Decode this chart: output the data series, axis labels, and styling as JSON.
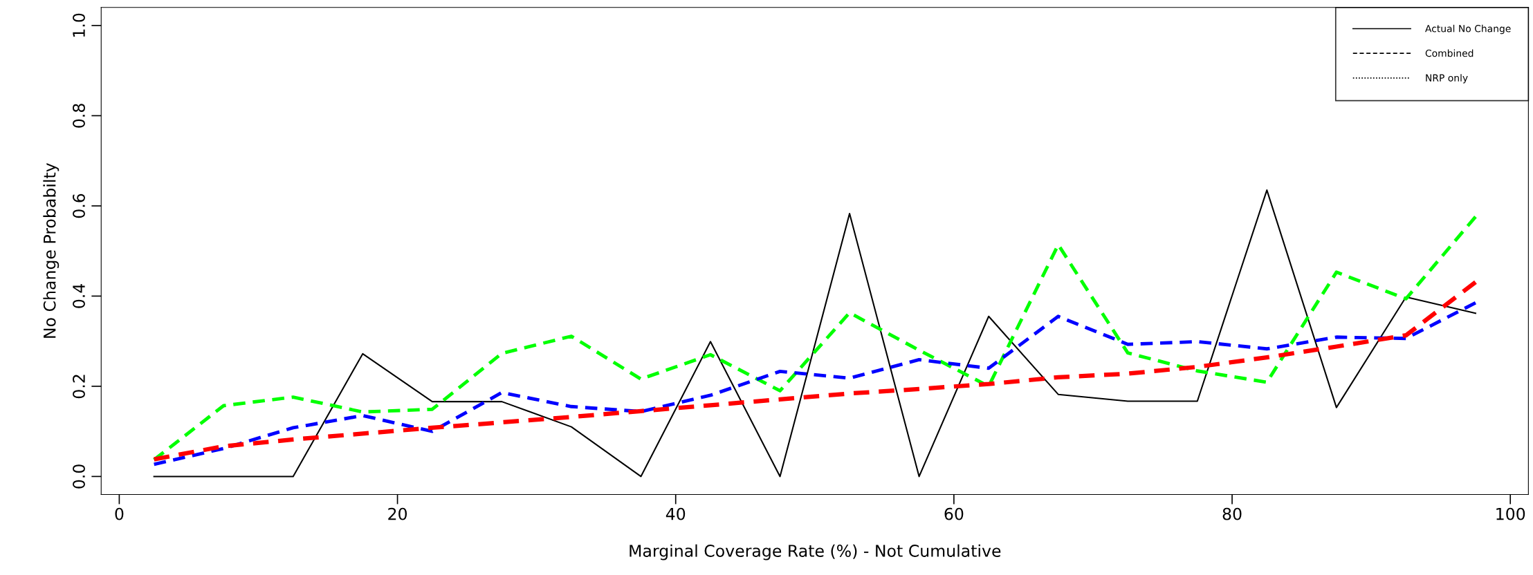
{
  "chart_data": {
    "type": "line",
    "xlabel": "Marginal Coverage Rate (%) - Not Cumulative",
    "ylabel": "No Change Probabilty",
    "x": [
      2.5,
      7.5,
      12.5,
      17.5,
      22.5,
      27.5,
      32.5,
      37.5,
      42.5,
      47.5,
      52.5,
      57.5,
      62.5,
      67.5,
      72.5,
      77.5,
      82.5,
      87.5,
      92.5,
      97.5
    ],
    "xlim": [
      -1.3,
      101.3
    ],
    "xticks": [
      0,
      20,
      40,
      60,
      80,
      100
    ],
    "ylim": [
      -0.04,
      1.04
    ],
    "yticks": [
      {
        "value": 0,
        "label": "0.0"
      },
      0.2,
      0.4,
      0.6,
      0.8,
      {
        "value": 1,
        "label": "1.0"
      }
    ],
    "grid": false,
    "legend": "top right",
    "marker": "none",
    "series": [
      {
        "name": "Actual No Change",
        "color": "#000000",
        "line_style": "solid",
        "values": [
          0,
          0,
          0,
          0.272,
          0.166,
          0.166,
          0.11,
          0,
          0.299,
          0,
          0.583,
          0,
          0.355,
          0.182,
          0.167,
          0.167,
          0.635,
          0.153,
          0.398,
          0.362
        ]
      },
      {
        "name": "Combined",
        "color": "#000000",
        "line_style": "dashed",
        "values": [
          null,
          null,
          null,
          null,
          null,
          null,
          null,
          null,
          null,
          null,
          null,
          null,
          null,
          null,
          null,
          null,
          null,
          null,
          null,
          null
        ]
      },
      {
        "name": "NRP only",
        "color": "#000000",
        "line_style": "dotted",
        "values": [
          null,
          null,
          null,
          null,
          null,
          null,
          null,
          null,
          null,
          null,
          null,
          null,
          null,
          null,
          null,
          null,
          null,
          null,
          null,
          null
        ]
      },
      {
        "color": "#00ff00",
        "line_style": "dashed",
        "values": [
          0.037,
          0.157,
          0.176,
          0.143,
          0.149,
          0.273,
          0.311,
          0.216,
          0.27,
          0.19,
          0.363,
          0.28,
          0.2,
          0.514,
          0.274,
          0.234,
          0.209,
          0.453,
          0.394,
          0.576
        ]
      },
      {
        "color": "#0000ff",
        "line_style": "dashed",
        "values": [
          0.027,
          0.062,
          0.108,
          0.135,
          0.1,
          0.186,
          0.155,
          0.144,
          0.18,
          0.233,
          0.218,
          0.259,
          0.24,
          0.355,
          0.293,
          0.299,
          0.283,
          0.309,
          0.306,
          0.385
        ]
      },
      {
        "color": "#ff0000",
        "line_style": "dashed",
        "values": [
          0.038,
          0.067,
          0.082,
          0.095,
          0.108,
          0.12,
          0.132,
          0.145,
          0.158,
          0.171,
          0.184,
          0.194,
          0.205,
          0.22,
          0.228,
          0.243,
          0.264,
          0.288,
          0.313,
          0.431
        ]
      }
    ]
  }
}
